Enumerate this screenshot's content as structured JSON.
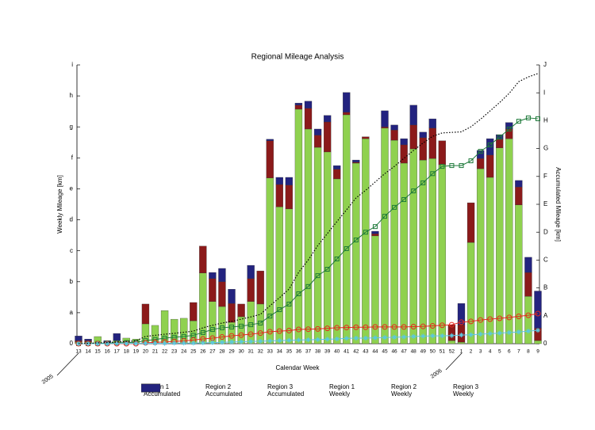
{
  "chart_data": {
    "type": "bar",
    "title": "Regional Mileage Analysis",
    "x_label": "Calendar Week",
    "y_label": "Weekly Mileage [km]",
    "y2_label": "Accumulated Mileage [km]",
    "year_labels": [
      "2005",
      "2006"
    ],
    "categories": [
      "13",
      "14",
      "15",
      "16",
      "17",
      "18",
      "19",
      "20",
      "21",
      "22",
      "23",
      "24",
      "25",
      "26",
      "27",
      "28",
      "29",
      "30",
      "31",
      "32",
      "33",
      "34",
      "35",
      "36",
      "37",
      "38",
      "39",
      "40",
      "41",
      "42",
      "43",
      "44",
      "45",
      "46",
      "47",
      "48",
      "49",
      "50",
      "51",
      "52",
      "1",
      "2",
      "3",
      "4",
      "5",
      "6",
      "7",
      "8",
      "9"
    ],
    "ylim": [
      0,
      9
    ],
    "yticks": [
      0,
      {
        "value": 1,
        "label": "a"
      },
      {
        "value": 2,
        "label": "b"
      },
      {
        "value": 3,
        "label": "c"
      },
      {
        "value": 4,
        "label": "d"
      },
      {
        "value": 5,
        "label": "e"
      },
      {
        "value": 6,
        "label": "f"
      },
      {
        "value": 7,
        "label": "g"
      },
      {
        "value": 8,
        "label": "h"
      },
      {
        "value": 9,
        "label": "i"
      }
    ],
    "y2lim": [
      0,
      10
    ],
    "y2ticks": [
      0,
      {
        "value": 1,
        "label": "A"
      },
      {
        "value": 2,
        "label": "B"
      },
      {
        "value": 3,
        "label": "C"
      },
      {
        "value": 4,
        "label": "D"
      },
      {
        "value": 5,
        "label": "E"
      },
      {
        "value": 6,
        "label": "F"
      },
      {
        "value": 7,
        "label": "G"
      },
      {
        "value": 8,
        "label": "H"
      },
      {
        "value": 9,
        "label": "I"
      },
      {
        "value": 10,
        "label": "J"
      }
    ],
    "series": [
      {
        "name": "Region 1 Accumulated",
        "type": "line",
        "axis": "y2",
        "marker": "square",
        "color": "#1e7a3a",
        "values": [
          0,
          0,
          0.01,
          0.02,
          0.03,
          0.04,
          0.05,
          0.11,
          0.15,
          0.2,
          0.23,
          0.26,
          0.3,
          0.4,
          0.51,
          0.57,
          0.6,
          0.63,
          0.68,
          0.74,
          0.99,
          1.22,
          1.42,
          1.79,
          2.05,
          2.44,
          2.67,
          3.04,
          3.41,
          3.72,
          4.0,
          4.2,
          4.57,
          4.89,
          5.17,
          5.48,
          5.77,
          6.1,
          6.36,
          6.39,
          6.39,
          6.56,
          6.9,
          7.13,
          7.41,
          7.7,
          7.98,
          8.1,
          8.07
        ]
      },
      {
        "name": "Region 2 Accumulated",
        "type": "line",
        "axis": "y2",
        "marker": "circle",
        "color": "#e8281e",
        "values": [
          0,
          0,
          0,
          0,
          0,
          0,
          0,
          0.03,
          0.05,
          0.06,
          0.08,
          0.1,
          0.13,
          0.17,
          0.2,
          0.24,
          0.28,
          0.31,
          0.34,
          0.38,
          0.43,
          0.45,
          0.47,
          0.51,
          0.52,
          0.53,
          0.55,
          0.57,
          0.58,
          0.59,
          0.59,
          0.6,
          0.6,
          0.6,
          0.6,
          0.61,
          0.62,
          0.64,
          0.66,
          0.68,
          0.77,
          0.8,
          0.85,
          0.88,
          0.91,
          0.94,
          0.98,
          1.02,
          1.08
        ]
      },
      {
        "name": "Region 3 Accumulated",
        "type": "line",
        "axis": "y2",
        "marker": "star",
        "color": "#5bc8e0",
        "values": [
          0,
          0,
          0,
          0,
          0.01,
          0.01,
          0.01,
          0.01,
          0.01,
          0.01,
          0.02,
          0.02,
          0.02,
          0.03,
          0.04,
          0.05,
          0.06,
          0.07,
          0.08,
          0.09,
          0.1,
          0.11,
          0.12,
          0.13,
          0.14,
          0.15,
          0.16,
          0.17,
          0.19,
          0.2,
          0.2,
          0.21,
          0.22,
          0.23,
          0.24,
          0.26,
          0.27,
          0.28,
          0.28,
          0.29,
          0.31,
          0.32,
          0.34,
          0.36,
          0.38,
          0.4,
          0.42,
          0.45,
          0.48
        ]
      },
      {
        "name": "Region 1 Weekly",
        "type": "bar",
        "color": "#8fd14f",
        "values": [
          0.05,
          0.05,
          0.23,
          0.05,
          0.1,
          0.18,
          0.15,
          0.64,
          0.59,
          1.07,
          0.79,
          0.82,
          0.74,
          2.28,
          1.36,
          1.2,
          0.69,
          0.87,
          1.36,
          1.28,
          5.35,
          4.42,
          4.35,
          7.57,
          6.93,
          6.34,
          6.19,
          5.32,
          7.39,
          5.83,
          6.62,
          3.48,
          6.96,
          6.57,
          5.83,
          6.29,
          5.93,
          5.98,
          5.78,
          0.1,
          0.05,
          3.27,
          5.65,
          5.37,
          6.32,
          6.62,
          4.48,
          1.53,
          0.1
        ]
      },
      {
        "name": "Region 2 Weekly",
        "type": "bar",
        "color": "#8b1a1a",
        "values": [
          0.05,
          0.05,
          0,
          0,
          0,
          0,
          0,
          0.64,
          0,
          0,
          0,
          0,
          0.59,
          0.87,
          0.74,
          0.8,
          0.61,
          0.41,
          0.74,
          1.07,
          1.2,
          0.72,
          0.77,
          0.13,
          0.67,
          0.39,
          0.97,
          0.31,
          0.08,
          0.03,
          0.06,
          0.07,
          0.04,
          0.33,
          0.59,
          0.77,
          0.72,
          0.98,
          0.77,
          0.51,
          0.56,
          1.28,
          0.33,
          0.72,
          0.28,
          0.31,
          0.58,
          0.77,
          0.4
        ]
      },
      {
        "name": "Region 3 Weekly",
        "type": "bar",
        "color": "#23237f",
        "values": [
          0.15,
          0.05,
          0,
          0.05,
          0.23,
          0,
          0,
          0,
          0,
          0,
          0,
          0,
          0,
          0,
          0.2,
          0.43,
          0.46,
          0,
          0.43,
          0,
          0.05,
          0.23,
          0.25,
          0.07,
          0.23,
          0.2,
          0.21,
          0.12,
          0.64,
          0.07,
          0,
          0.08,
          0.52,
          0.16,
          0.2,
          0.64,
          0.18,
          0.3,
          0,
          0,
          0.69,
          0,
          0.26,
          0.53,
          0.15,
          0.21,
          0.21,
          0.49,
          1.2
        ]
      },
      {
        "type": "line",
        "axis": "y2",
        "style": "dotted",
        "color": "#000000",
        "values": [
          0,
          0.01,
          0.03,
          0.04,
          0.06,
          0.08,
          0.1,
          0.26,
          0.3,
          0.34,
          0.37,
          0.41,
          0.45,
          0.57,
          0.66,
          0.74,
          0.8,
          0.88,
          0.96,
          1.05,
          1.36,
          1.65,
          1.96,
          2.56,
          3.0,
          3.52,
          3.95,
          4.38,
          4.8,
          5.23,
          5.5,
          5.8,
          6.1,
          6.36,
          6.65,
          6.93,
          7.2,
          7.44,
          7.56,
          7.58,
          7.6,
          7.78,
          8.05,
          8.35,
          8.65,
          8.98,
          9.4,
          9.57,
          9.69
        ]
      }
    ]
  }
}
